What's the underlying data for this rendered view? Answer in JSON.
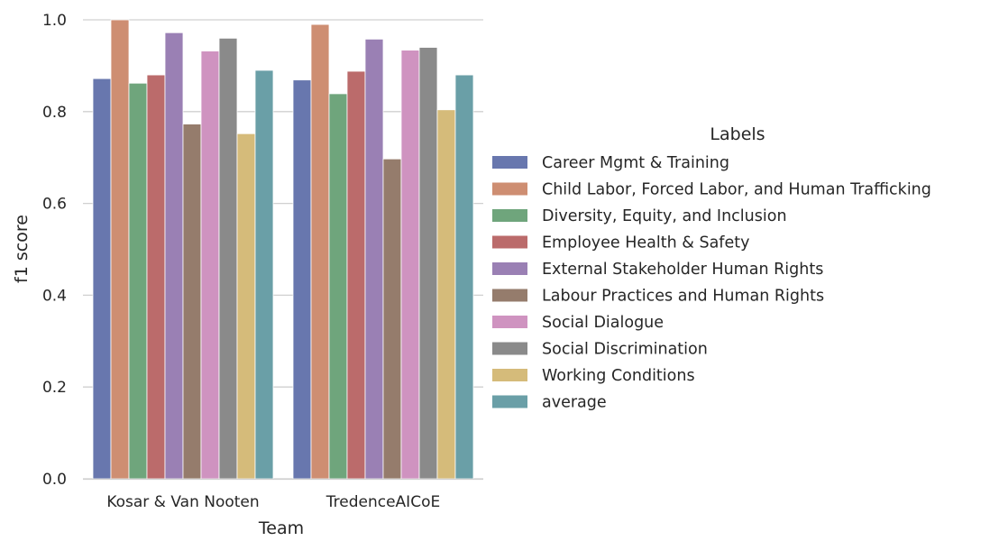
{
  "chart_data": {
    "type": "bar",
    "xlabel": "Team",
    "ylabel": "f1 score",
    "ylim": [
      0,
      1.0
    ],
    "yticks": [
      0.0,
      0.2,
      0.4,
      0.6,
      0.8,
      1.0
    ],
    "ytick_labels": [
      "0.0",
      "0.2",
      "0.4",
      "0.6",
      "0.8",
      "1.0"
    ],
    "grid": "horizontal",
    "categories": [
      "Kosar & Van Nooten",
      "TredenceAICoE"
    ],
    "legend": {
      "title": "Labels",
      "placement": "right"
    },
    "series": [
      {
        "name": "Career Mgmt & Training",
        "color": "#6877ae",
        "values": [
          0.872,
          0.869
        ]
      },
      {
        "name": "Child Labor, Forced Labor, and Human Trafficking",
        "color": "#ce8e72",
        "values": [
          1.0,
          0.99
        ]
      },
      {
        "name": "Diversity, Equity, and Inclusion",
        "color": "#6fa57c",
        "values": [
          0.862,
          0.839
        ]
      },
      {
        "name": "Employee Health & Safety",
        "color": "#bb6b6b",
        "values": [
          0.88,
          0.888
        ]
      },
      {
        "name": "External Stakeholder Human Rights",
        "color": "#9a80b4",
        "values": [
          0.972,
          0.958
        ]
      },
      {
        "name": "Labour Practices and Human Rights",
        "color": "#957c6c",
        "values": [
          0.773,
          0.697
        ]
      },
      {
        "name": "Social Dialogue",
        "color": "#cf93c0",
        "values": [
          0.932,
          0.934
        ]
      },
      {
        "name": "Social Discrimination",
        "color": "#8a8a8a",
        "values": [
          0.96,
          0.94
        ]
      },
      {
        "name": "Working Conditions",
        "color": "#d5bb7a",
        "values": [
          0.752,
          0.804
        ]
      },
      {
        "name": "average",
        "color": "#6a9fa7",
        "values": [
          0.89,
          0.88
        ]
      }
    ]
  }
}
